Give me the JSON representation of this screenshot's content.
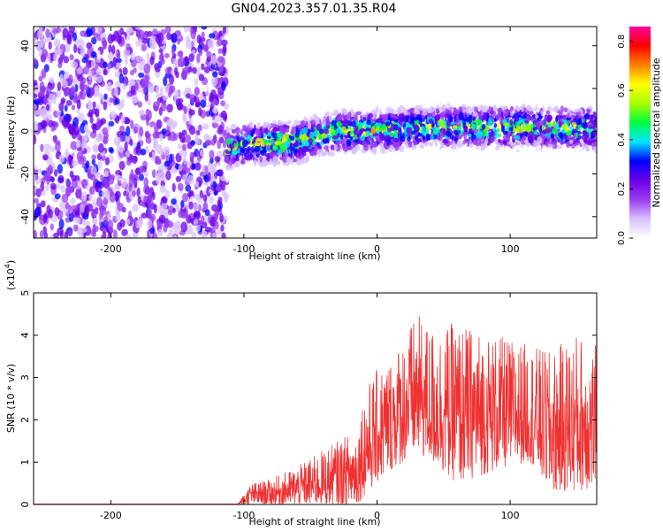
{
  "title": "GN04.2023.357.01.35.R04",
  "chart_data": [
    {
      "type": "heatmap",
      "xlabel": "Height of straight line (km)",
      "ylabel": "Frequency (Hz)",
      "xlim": [
        -258,
        165
      ],
      "ylim": [
        -50,
        49
      ],
      "x_ticks": [
        -200,
        -100,
        0,
        100
      ],
      "y_ticks": [
        -40,
        -20,
        0,
        20,
        40
      ],
      "colorbar": {
        "label": "Normalized spectral amplitude",
        "range": [
          0.0,
          0.86
        ],
        "ticks": [
          "0.0",
          "0.2",
          "0.4",
          "0.6",
          "0.8"
        ],
        "colors": [
          "#ffffff",
          "#d8c0ff",
          "#9a3cf0",
          "#6a00e8",
          "#0000ff",
          "#00e5ff",
          "#00ff40",
          "#a8ff00",
          "#ffff00",
          "#ff8000",
          "#ff0000",
          "#ff00a0"
        ]
      },
      "regions": [
        {
          "x_range": [
            -258,
            -113
          ],
          "description_type": "broadband noise",
          "freq_range": [
            -50,
            49
          ],
          "amplitude_level": 0.1
        },
        {
          "x_range": [
            -113,
            165
          ],
          "description_type": "narrow band",
          "freq_center": [
            [
              -113,
              -8
            ],
            [
              -100,
              -6
            ],
            [
              -60,
              -5
            ],
            [
              -30,
              0
            ],
            [
              0,
              0
            ],
            [
              40,
              2
            ],
            [
              100,
              2
            ],
            [
              165,
              1
            ]
          ],
          "bandwidth_hz": 14,
          "amplitude_peak": 0.86
        }
      ]
    },
    {
      "type": "line",
      "xlabel": "Height of straight line (km)",
      "ylabel": "SNR (10 * v/v)",
      "y_scale_label": "(x10",
      "y_scale_exp": "4",
      "y_scale_close": ")",
      "xlim": [
        -258,
        165
      ],
      "ylim": [
        0,
        5
      ],
      "x_ticks": [
        -200,
        -100,
        0,
        100
      ],
      "y_ticks": [
        0,
        1,
        2,
        3,
        4,
        5
      ],
      "color": "#f03030",
      "envelope": {
        "x": [
          -258,
          -105,
          -95,
          -80,
          -60,
          -40,
          -25,
          -15,
          -10,
          0,
          10,
          20,
          30,
          40,
          60,
          80,
          100,
          115,
          130,
          150,
          165
        ],
        "low": [
          0,
          0,
          0,
          0,
          0,
          0,
          0,
          0,
          0.2,
          0.5,
          0.8,
          1.0,
          1.2,
          1.0,
          0.5,
          0.7,
          0.9,
          1.0,
          0.3,
          0.3,
          0.4
        ],
        "high": [
          0,
          0,
          0.5,
          0.6,
          0.9,
          1.3,
          1.6,
          1.8,
          2.7,
          3.2,
          3.5,
          4.0,
          4.5,
          4.2,
          4.3,
          4.1,
          3.9,
          3.8,
          3.6,
          4.1,
          3.8
        ]
      }
    }
  ]
}
